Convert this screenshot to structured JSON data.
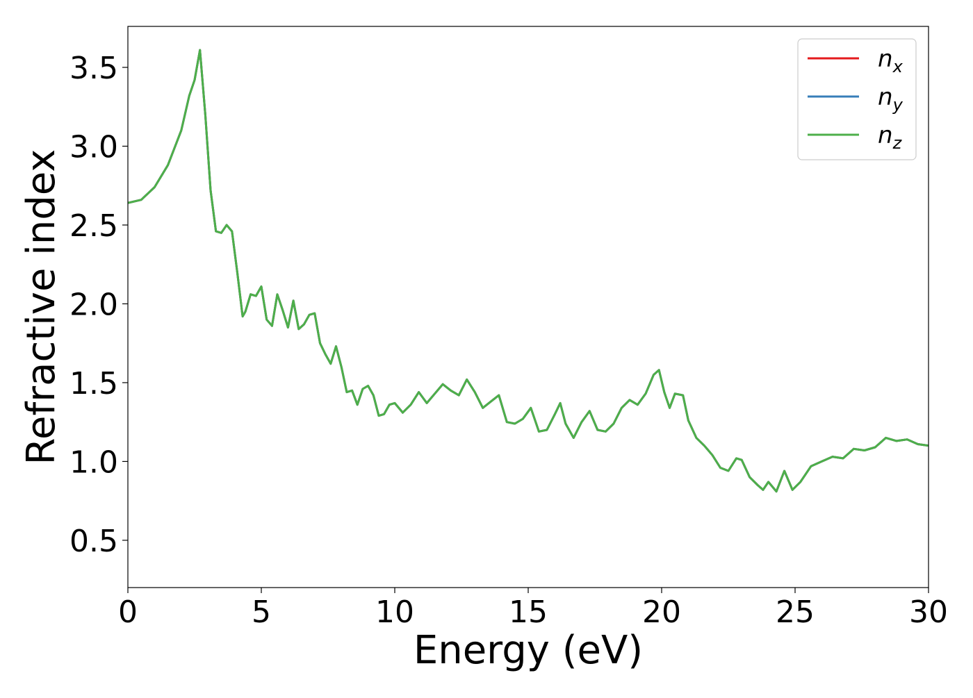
{
  "chart_data": {
    "type": "line",
    "title": "",
    "xlabel": "Energy (eV)",
    "ylabel": "Refractive index",
    "xlim": [
      0,
      30
    ],
    "ylim": [
      0.2,
      3.76
    ],
    "xticks": [
      0,
      5,
      10,
      15,
      20,
      25,
      30
    ],
    "xtick_labels": [
      "0",
      "5",
      "10",
      "15",
      "20",
      "25",
      "30"
    ],
    "yticks": [
      0.5,
      1.0,
      1.5,
      2.0,
      2.5,
      3.0,
      3.5
    ],
    "ytick_labels": [
      "0.5",
      "1.0",
      "1.5",
      "2.0",
      "2.5",
      "3.0",
      "3.5"
    ],
    "grid": false,
    "legend_position": "top-right",
    "legend": [
      {
        "base": "n",
        "sub": "x",
        "color": "#e41a1c"
      },
      {
        "base": "n",
        "sub": "y",
        "color": "#377eb8"
      },
      {
        "base": "n",
        "sub": "z",
        "color": "#4daf4a"
      }
    ],
    "series": [
      {
        "name": "n_x",
        "color": "#e41a1c",
        "x": [
          0,
          0.5,
          1.0,
          1.5,
          2.0,
          2.3,
          2.5,
          2.7,
          2.9,
          3.1,
          3.3,
          3.5,
          3.7,
          3.9,
          4.1,
          4.3,
          4.4,
          4.6,
          4.8,
          5.0,
          5.2,
          5.4,
          5.6,
          5.8,
          6.0,
          6.2,
          6.4,
          6.6,
          6.8,
          7.0,
          7.2,
          7.4,
          7.6,
          7.8,
          8.0,
          8.2,
          8.4,
          8.6,
          8.8,
          9.0,
          9.2,
          9.4,
          9.6,
          9.8,
          10.0,
          10.3,
          10.6,
          10.9,
          11.2,
          11.5,
          11.8,
          12.1,
          12.4,
          12.7,
          13.0,
          13.3,
          13.6,
          13.9,
          14.2,
          14.5,
          14.8,
          15.1,
          15.4,
          15.7,
          16.0,
          16.2,
          16.4,
          16.7,
          17.0,
          17.3,
          17.6,
          17.9,
          18.2,
          18.5,
          18.8,
          19.1,
          19.4,
          19.7,
          19.9,
          20.1,
          20.3,
          20.5,
          20.8,
          21.0,
          21.3,
          21.6,
          21.9,
          22.2,
          22.5,
          22.8,
          23.0,
          23.3,
          23.6,
          23.8,
          24.0,
          24.3,
          24.6,
          24.9,
          25.2,
          25.6,
          26.0,
          26.4,
          26.8,
          27.2,
          27.6,
          28.0,
          28.4,
          28.8,
          29.2,
          29.6,
          30.0
        ],
        "y": [
          2.64,
          2.66,
          2.74,
          2.88,
          3.1,
          3.32,
          3.42,
          3.61,
          3.2,
          2.72,
          2.46,
          2.45,
          2.5,
          2.46,
          2.2,
          1.92,
          1.95,
          2.06,
          2.05,
          2.11,
          1.9,
          1.86,
          2.06,
          1.96,
          1.85,
          2.02,
          1.84,
          1.87,
          1.93,
          1.94,
          1.75,
          1.68,
          1.62,
          1.73,
          1.6,
          1.44,
          1.45,
          1.36,
          1.46,
          1.48,
          1.42,
          1.29,
          1.3,
          1.36,
          1.37,
          1.31,
          1.36,
          1.44,
          1.37,
          1.43,
          1.49,
          1.45,
          1.42,
          1.52,
          1.44,
          1.34,
          1.38,
          1.42,
          1.25,
          1.24,
          1.27,
          1.34,
          1.19,
          1.2,
          1.3,
          1.37,
          1.24,
          1.15,
          1.25,
          1.32,
          1.2,
          1.19,
          1.24,
          1.34,
          1.39,
          1.36,
          1.43,
          1.55,
          1.58,
          1.44,
          1.34,
          1.43,
          1.42,
          1.26,
          1.15,
          1.1,
          1.04,
          0.96,
          0.94,
          1.02,
          1.01,
          0.9,
          0.85,
          0.82,
          0.87,
          0.81,
          0.94,
          0.82,
          0.87,
          0.97,
          1.0,
          1.03,
          1.02,
          1.08,
          1.07,
          1.09,
          1.15,
          1.13,
          1.14,
          1.11,
          1.1
        ]
      },
      {
        "name": "n_y",
        "color": "#377eb8",
        "x": [
          0,
          0.5,
          1.0,
          1.5,
          2.0,
          2.3,
          2.5,
          2.7,
          2.9,
          3.1,
          3.3,
          3.5,
          3.7,
          3.9,
          4.1,
          4.3,
          4.4,
          4.6,
          4.8,
          5.0,
          5.2,
          5.4,
          5.6,
          5.8,
          6.0,
          6.2,
          6.4,
          6.6,
          6.8,
          7.0,
          7.2,
          7.4,
          7.6,
          7.8,
          8.0,
          8.2,
          8.4,
          8.6,
          8.8,
          9.0,
          9.2,
          9.4,
          9.6,
          9.8,
          10.0,
          10.3,
          10.6,
          10.9,
          11.2,
          11.5,
          11.8,
          12.1,
          12.4,
          12.7,
          13.0,
          13.3,
          13.6,
          13.9,
          14.2,
          14.5,
          14.8,
          15.1,
          15.4,
          15.7,
          16.0,
          16.2,
          16.4,
          16.7,
          17.0,
          17.3,
          17.6,
          17.9,
          18.2,
          18.5,
          18.8,
          19.1,
          19.4,
          19.7,
          19.9,
          20.1,
          20.3,
          20.5,
          20.8,
          21.0,
          21.3,
          21.6,
          21.9,
          22.2,
          22.5,
          22.8,
          23.0,
          23.3,
          23.6,
          23.8,
          24.0,
          24.3,
          24.6,
          24.9,
          25.2,
          25.6,
          26.0,
          26.4,
          26.8,
          27.2,
          27.6,
          28.0,
          28.4,
          28.8,
          29.2,
          29.6,
          30.0
        ],
        "y": [
          2.64,
          2.66,
          2.74,
          2.88,
          3.1,
          3.32,
          3.42,
          3.61,
          3.2,
          2.72,
          2.46,
          2.45,
          2.5,
          2.46,
          2.2,
          1.92,
          1.95,
          2.06,
          2.05,
          2.11,
          1.9,
          1.86,
          2.06,
          1.96,
          1.85,
          2.02,
          1.84,
          1.87,
          1.93,
          1.94,
          1.75,
          1.68,
          1.62,
          1.73,
          1.6,
          1.44,
          1.45,
          1.36,
          1.46,
          1.48,
          1.42,
          1.29,
          1.3,
          1.36,
          1.37,
          1.31,
          1.36,
          1.44,
          1.37,
          1.43,
          1.49,
          1.45,
          1.42,
          1.52,
          1.44,
          1.34,
          1.38,
          1.42,
          1.25,
          1.24,
          1.27,
          1.34,
          1.19,
          1.2,
          1.3,
          1.37,
          1.24,
          1.15,
          1.25,
          1.32,
          1.2,
          1.19,
          1.24,
          1.34,
          1.39,
          1.36,
          1.43,
          1.55,
          1.58,
          1.44,
          1.34,
          1.43,
          1.42,
          1.26,
          1.15,
          1.1,
          1.04,
          0.96,
          0.94,
          1.02,
          1.01,
          0.9,
          0.85,
          0.82,
          0.87,
          0.81,
          0.94,
          0.82,
          0.87,
          0.97,
          1.0,
          1.03,
          1.02,
          1.08,
          1.07,
          1.09,
          1.15,
          1.13,
          1.14,
          1.11,
          1.1
        ]
      },
      {
        "name": "n_z",
        "color": "#4daf4a",
        "x": [
          0,
          0.5,
          1.0,
          1.5,
          2.0,
          2.3,
          2.5,
          2.7,
          2.9,
          3.1,
          3.3,
          3.5,
          3.7,
          3.9,
          4.1,
          4.3,
          4.4,
          4.6,
          4.8,
          5.0,
          5.2,
          5.4,
          5.6,
          5.8,
          6.0,
          6.2,
          6.4,
          6.6,
          6.8,
          7.0,
          7.2,
          7.4,
          7.6,
          7.8,
          8.0,
          8.2,
          8.4,
          8.6,
          8.8,
          9.0,
          9.2,
          9.4,
          9.6,
          9.8,
          10.0,
          10.3,
          10.6,
          10.9,
          11.2,
          11.5,
          11.8,
          12.1,
          12.4,
          12.7,
          13.0,
          13.3,
          13.6,
          13.9,
          14.2,
          14.5,
          14.8,
          15.1,
          15.4,
          15.7,
          16.0,
          16.2,
          16.4,
          16.7,
          17.0,
          17.3,
          17.6,
          17.9,
          18.2,
          18.5,
          18.8,
          19.1,
          19.4,
          19.7,
          19.9,
          20.1,
          20.3,
          20.5,
          20.8,
          21.0,
          21.3,
          21.6,
          21.9,
          22.2,
          22.5,
          22.8,
          23.0,
          23.3,
          23.6,
          23.8,
          24.0,
          24.3,
          24.6,
          24.9,
          25.2,
          25.6,
          26.0,
          26.4,
          26.8,
          27.2,
          27.6,
          28.0,
          28.4,
          28.8,
          29.2,
          29.6,
          30.0
        ],
        "y": [
          2.64,
          2.66,
          2.74,
          2.88,
          3.1,
          3.32,
          3.42,
          3.61,
          3.2,
          2.72,
          2.46,
          2.45,
          2.5,
          2.46,
          2.2,
          1.92,
          1.95,
          2.06,
          2.05,
          2.11,
          1.9,
          1.86,
          2.06,
          1.96,
          1.85,
          2.02,
          1.84,
          1.87,
          1.93,
          1.94,
          1.75,
          1.68,
          1.62,
          1.73,
          1.6,
          1.44,
          1.45,
          1.36,
          1.46,
          1.48,
          1.42,
          1.29,
          1.3,
          1.36,
          1.37,
          1.31,
          1.36,
          1.44,
          1.37,
          1.43,
          1.49,
          1.45,
          1.42,
          1.52,
          1.44,
          1.34,
          1.38,
          1.42,
          1.25,
          1.24,
          1.27,
          1.34,
          1.19,
          1.2,
          1.3,
          1.37,
          1.24,
          1.15,
          1.25,
          1.32,
          1.2,
          1.19,
          1.24,
          1.34,
          1.39,
          1.36,
          1.43,
          1.55,
          1.58,
          1.44,
          1.34,
          1.43,
          1.42,
          1.26,
          1.15,
          1.1,
          1.04,
          0.96,
          0.94,
          1.02,
          1.01,
          0.9,
          0.85,
          0.82,
          0.87,
          0.81,
          0.94,
          0.82,
          0.87,
          0.97,
          1.0,
          1.03,
          1.02,
          1.08,
          1.07,
          1.09,
          1.15,
          1.13,
          1.14,
          1.11,
          1.1
        ]
      }
    ]
  }
}
